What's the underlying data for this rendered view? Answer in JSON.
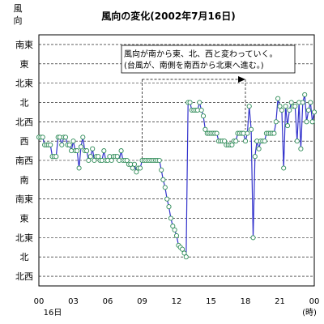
{
  "chart_data": {
    "type": "line",
    "title": "風向の変化(2002年7月16日)",
    "ylabel": "風向",
    "xlabel": "(時)",
    "date_label": "16日",
    "x_ticks": [
      "00",
      "03",
      "06",
      "09",
      "12",
      "15",
      "18",
      "21",
      "00"
    ],
    "x_range": [
      0,
      24
    ],
    "y_categories": [
      "北西",
      "北",
      "北東",
      "東",
      "南東",
      "南",
      "南西",
      "西",
      "北西",
      "北",
      "北東",
      "東",
      "南東"
    ],
    "grid": "dashed horizontal lines at each direction",
    "annotation": {
      "lines": [
        "風向が南から東、北、西と変わっていく。",
        "(台風が、南側を南西から北東へ進む。)"
      ],
      "arrow_from_hour": 9,
      "arrow_to_hour": 18
    },
    "series": [
      {
        "color": "#3333cc",
        "marker_color": "#2e8b57",
        "x": [
          0.0,
          0.17,
          0.33,
          0.5,
          0.67,
          0.83,
          1.0,
          1.17,
          1.33,
          1.5,
          1.67,
          1.83,
          2.0,
          2.17,
          2.33,
          2.5,
          2.67,
          2.83,
          3.0,
          3.17,
          3.33,
          3.5,
          3.67,
          3.83,
          4.0,
          4.17,
          4.33,
          4.5,
          4.67,
          4.83,
          5.0,
          5.17,
          5.33,
          5.5,
          5.67,
          5.83,
          6.0,
          6.17,
          6.33,
          6.5,
          6.67,
          6.83,
          7.0,
          7.17,
          7.33,
          7.5,
          7.67,
          7.83,
          8.0,
          8.17,
          8.33,
          8.5,
          8.67,
          8.83,
          9.0,
          9.17,
          9.33,
          9.5,
          9.67,
          9.83,
          10.0,
          10.17,
          10.33,
          10.5,
          10.67,
          10.83,
          11.0,
          11.17,
          11.33,
          11.5,
          11.67,
          11.83,
          12.0,
          12.17,
          12.33,
          12.5,
          12.67,
          12.83,
          13.0,
          13.17,
          13.33,
          13.5,
          13.67,
          13.83,
          14.0,
          14.17,
          14.33,
          14.5,
          14.67,
          14.83,
          15.0,
          15.17,
          15.33,
          15.5,
          15.67,
          15.83,
          16.0,
          16.17,
          16.33,
          16.5,
          16.67,
          16.83,
          17.0,
          17.17,
          17.33,
          17.5,
          17.67,
          17.83,
          18.0,
          18.17,
          18.33,
          18.5,
          18.67,
          18.83,
          19.0,
          19.17,
          19.33,
          19.5,
          19.67,
          19.83,
          20.0,
          20.17,
          20.33,
          20.5,
          20.67,
          20.83,
          21.0,
          21.17,
          21.33,
          21.5,
          21.67,
          21.83,
          22.0,
          22.17,
          22.33,
          22.5,
          22.67,
          22.83,
          23.0,
          23.17,
          23.33,
          23.5,
          23.67,
          23.83,
          24.0
        ],
        "y": [
          7.2,
          7.2,
          7.2,
          6.8,
          6.8,
          6.8,
          6.8,
          6.2,
          6.2,
          6.2,
          7.2,
          7.2,
          6.8,
          7.2,
          7.2,
          6.8,
          6.8,
          6.5,
          7.0,
          6.5,
          6.5,
          5.6,
          6.7,
          7.2,
          6.5,
          6.5,
          6.0,
          6.2,
          6.6,
          6.0,
          6.2,
          6.2,
          6.0,
          6.0,
          6.5,
          6.0,
          6.0,
          6.2,
          6.0,
          6.2,
          6.2,
          6.2,
          6.0,
          6.5,
          6.0,
          6.0,
          6.0,
          5.8,
          5.8,
          5.6,
          5.8,
          5.4,
          5.6,
          5.6,
          6.0,
          6.0,
          6.0,
          6.0,
          6.0,
          6.0,
          6.0,
          6.0,
          6.0,
          6.0,
          5.5,
          5.0,
          4.6,
          4.0,
          3.6,
          3.0,
          2.6,
          2.4,
          2.1,
          1.6,
          1.5,
          1.4,
          1.2,
          1.0,
          9.0,
          9.0,
          8.6,
          8.6,
          8.6,
          8.6,
          9.0,
          8.6,
          8.3,
          7.6,
          7.4,
          7.4,
          7.4,
          7.4,
          7.4,
          7.4,
          7.0,
          7.0,
          7.0,
          7.0,
          6.8,
          6.8,
          6.8,
          6.8,
          7.0,
          7.0,
          7.4,
          7.4,
          7.4,
          7.4,
          7.0,
          7.4,
          8.8,
          7.6,
          2.0,
          6.2,
          7.0,
          6.6,
          7.0,
          7.0,
          7.0,
          7.4,
          7.4,
          7.4,
          7.4,
          7.4,
          8.0,
          9.2,
          8.8,
          8.6,
          5.6,
          8.8,
          7.8,
          8.6,
          9.0,
          8.8,
          8.8,
          7.0,
          9.0,
          6.6,
          9.0,
          9.4,
          8.0,
          8.6,
          9.0,
          8.0,
          8.5
        ]
      }
    ]
  }
}
